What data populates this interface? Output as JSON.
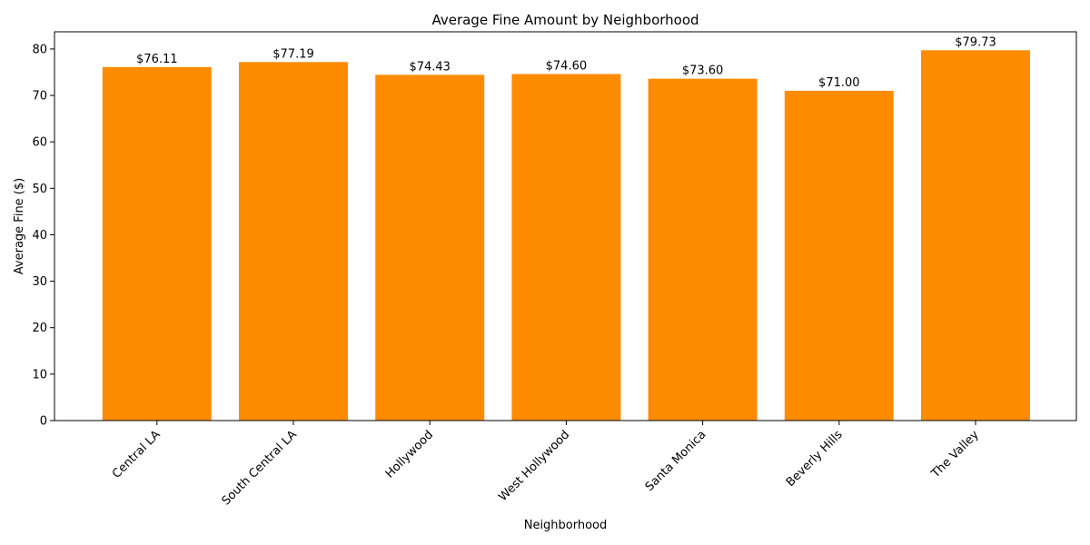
{
  "chart_data": {
    "type": "bar",
    "title": "Average Fine Amount by Neighborhood",
    "xlabel": "Neighborhood",
    "ylabel": "Average Fine ($)",
    "categories": [
      "Central LA",
      "South Central LA",
      "Hollywood",
      "West Hollywood",
      "Santa Monica",
      "Beverly Hills",
      "The Valley"
    ],
    "values": [
      76.11,
      77.19,
      74.43,
      74.6,
      73.6,
      71.0,
      79.73
    ],
    "data_labels": [
      "$76.11",
      "$77.19",
      "$74.43",
      "$74.60",
      "$73.60",
      "$71.00",
      "$79.73"
    ],
    "yticks": [
      0,
      10,
      20,
      30,
      40,
      50,
      60,
      70,
      80
    ],
    "ylim": [
      0,
      83.7
    ],
    "grid": false,
    "legend": "none",
    "bar_color": "#ff8c00",
    "x_tick_rotation": "45"
  }
}
